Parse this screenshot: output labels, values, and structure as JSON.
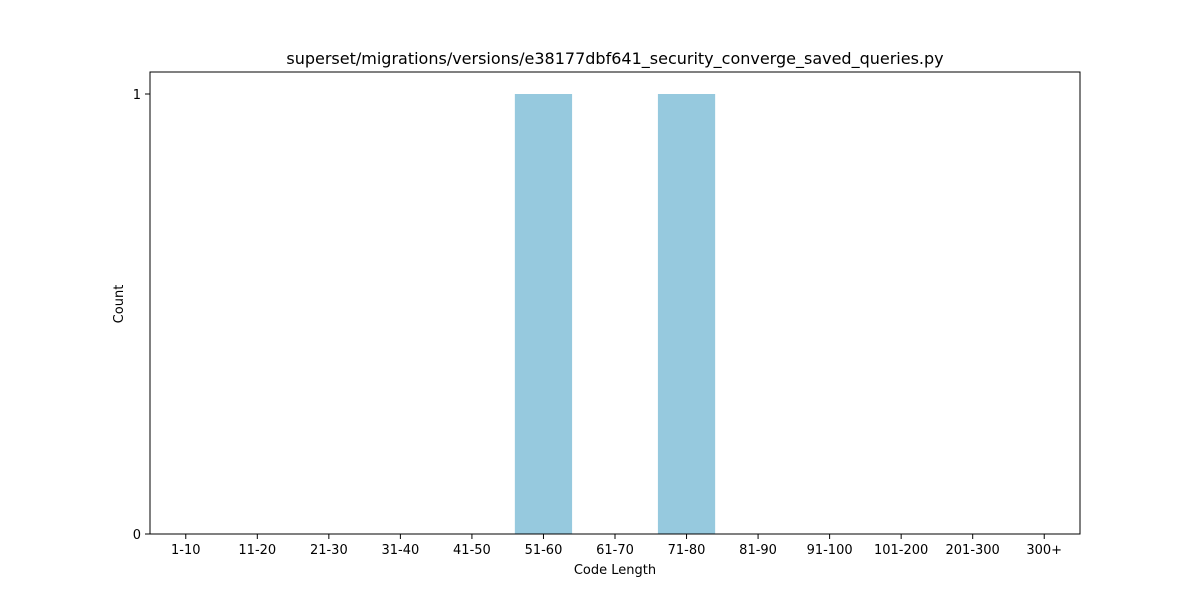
{
  "chart_data": {
    "type": "bar",
    "title": "superset/migrations/versions/e38177dbf641_security_converge_saved_queries.py",
    "xlabel": "Code Length",
    "ylabel": "Count",
    "categories": [
      "1-10",
      "11-20",
      "21-30",
      "31-40",
      "41-50",
      "51-60",
      "61-70",
      "71-80",
      "81-90",
      "91-100",
      "101-200",
      "201-300",
      "300+"
    ],
    "values": [
      0,
      0,
      0,
      0,
      0,
      1,
      0,
      1,
      0,
      0,
      0,
      0,
      0
    ],
    "ylim": [
      0,
      1
    ],
    "yticks": [
      0,
      1
    ],
    "grid": false,
    "bar_color": "#96c9de"
  }
}
